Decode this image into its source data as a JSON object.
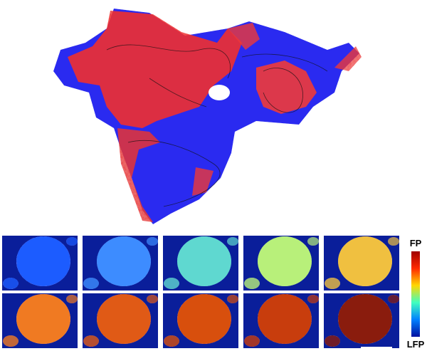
{
  "colorbar": {
    "top_label": "FP",
    "bottom_label": "LFP"
  }
}
